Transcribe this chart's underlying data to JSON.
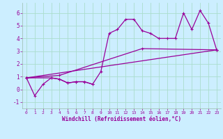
{
  "xlabel": "Windchill (Refroidissement éolien,°C)",
  "background_color": "#cceeff",
  "grid_color": "#aaddcc",
  "line_color": "#990099",
  "xlim": [
    -0.5,
    23.5
  ],
  "ylim": [
    -1.5,
    6.8
  ],
  "xticks": [
    0,
    1,
    2,
    3,
    4,
    5,
    6,
    7,
    8,
    9,
    10,
    11,
    12,
    13,
    14,
    15,
    16,
    17,
    18,
    19,
    20,
    21,
    22,
    23
  ],
  "yticks": [
    -1,
    0,
    1,
    2,
    3,
    4,
    5,
    6
  ],
  "series": [
    {
      "x": [
        0,
        3,
        4,
        5,
        6,
        7,
        8,
        9,
        10,
        11,
        12,
        13,
        14,
        15,
        16,
        17,
        18,
        19,
        20,
        21,
        22,
        23
      ],
      "y": [
        0.9,
        0.9,
        0.8,
        0.5,
        0.6,
        0.6,
        0.4,
        1.4,
        4.4,
        4.7,
        5.5,
        5.5,
        4.6,
        4.4,
        4.0,
        4.0,
        4.0,
        6.0,
        4.7,
        6.2,
        5.2,
        3.1
      ]
    },
    {
      "x": [
        0,
        1,
        2,
        3,
        4,
        5,
        6,
        7,
        8
      ],
      "y": [
        0.9,
        -0.5,
        0.4,
        0.9,
        0.8,
        0.5,
        0.6,
        0.6,
        0.4
      ]
    },
    {
      "x": [
        0,
        23
      ],
      "y": [
        0.9,
        3.1
      ]
    },
    {
      "x": [
        0,
        4,
        14,
        23
      ],
      "y": [
        0.9,
        1.1,
        3.2,
        3.1
      ]
    }
  ]
}
